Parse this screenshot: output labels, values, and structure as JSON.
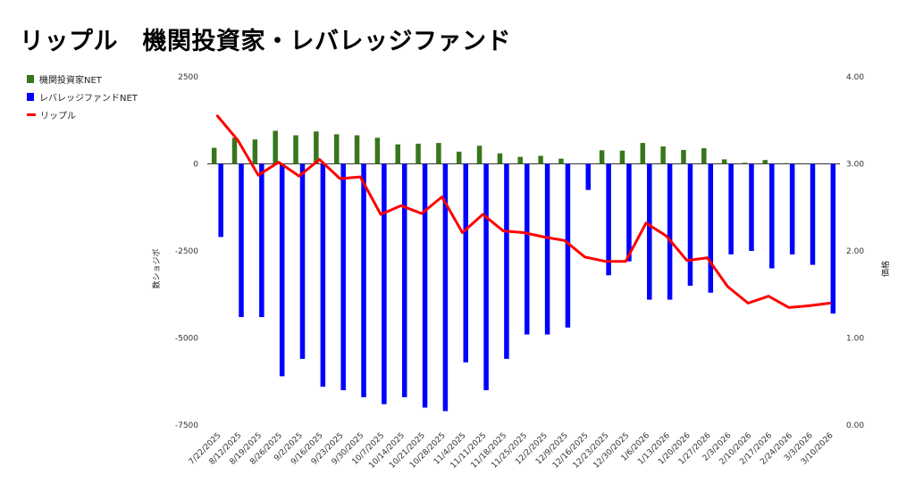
{
  "title": "リップル　機関投資家・レバレッジファンド",
  "legend": {
    "items": [
      {
        "label": "機関投資家NET",
        "color": "#38761d"
      },
      {
        "label": "レバレッジファンドNET",
        "color": "#0000ff"
      },
      {
        "label": "リップル",
        "color": "#ff0000"
      }
    ]
  },
  "chart_data": {
    "type": "bar",
    "categories": [
      "7/22/2025",
      "8/12/2025",
      "8/19/2025",
      "8/26/2025",
      "9/2/2025",
      "9/16/2025",
      "9/23/2025",
      "9/30/2025",
      "10/7/2025",
      "10/14/2025",
      "10/21/2025",
      "10/28/2025",
      "11/4/2025",
      "11/11/2025",
      "11/18/2025",
      "11/25/2025",
      "12/2/2025",
      "12/9/2025",
      "12/16/2025",
      "12/23/2025",
      "12/30/2025",
      "1/6/2026",
      "1/13/2026",
      "1/20/2026",
      "1/27/2026",
      "2/3/2026",
      "2/10/2026",
      "2/17/2026",
      "2/24/2026",
      "3/3/2026",
      "3/10/2026"
    ],
    "series": [
      {
        "name": "機関投資家NET",
        "type": "bar",
        "axis": "left",
        "color": "#38761d",
        "values": [
          460,
          750,
          700,
          950,
          820,
          930,
          850,
          820,
          750,
          560,
          580,
          600,
          350,
          520,
          300,
          200,
          230,
          150,
          0,
          390,
          380,
          600,
          500,
          400,
          450,
          130,
          30,
          110,
          20,
          0,
          0
        ]
      },
      {
        "name": "レバレッジファンドNET",
        "type": "bar",
        "axis": "left",
        "color": "#0000ff",
        "values": [
          -2100,
          -4400,
          -4400,
          -6100,
          -5600,
          -6400,
          -6500,
          -6700,
          -6900,
          -6700,
          -7000,
          -7100,
          -5700,
          -6500,
          -5600,
          -4900,
          -4900,
          -4700,
          -750,
          -3200,
          -2800,
          -3900,
          -3900,
          -3500,
          -3700,
          -2600,
          -2500,
          -3000,
          -2600,
          -2900,
          -4300
        ]
      },
      {
        "name": "リップル",
        "type": "line",
        "axis": "right",
        "color": "#ff0000",
        "values": [
          3.55,
          3.27,
          2.87,
          3.02,
          2.86,
          3.05,
          2.83,
          2.85,
          2.42,
          2.52,
          2.43,
          2.62,
          2.21,
          2.42,
          2.23,
          2.21,
          2.16,
          2.12,
          1.93,
          1.88,
          1.88,
          2.32,
          2.17,
          1.89,
          1.92,
          1.59,
          1.4,
          1.48,
          1.35,
          1.37,
          1.4
        ]
      }
    ],
    "yleft": {
      "label": "数ショジボ",
      "min": -7500,
      "max": 2500,
      "ticks": [
        2500,
        0,
        -2500,
        -5000,
        -7500
      ]
    },
    "yright": {
      "label": "価格",
      "min": 0,
      "max": 4,
      "ticks": [
        "4.00",
        "3.00",
        "2.00",
        "1.00",
        "0.00"
      ]
    },
    "grid": false,
    "legend_position": "top-left"
  }
}
